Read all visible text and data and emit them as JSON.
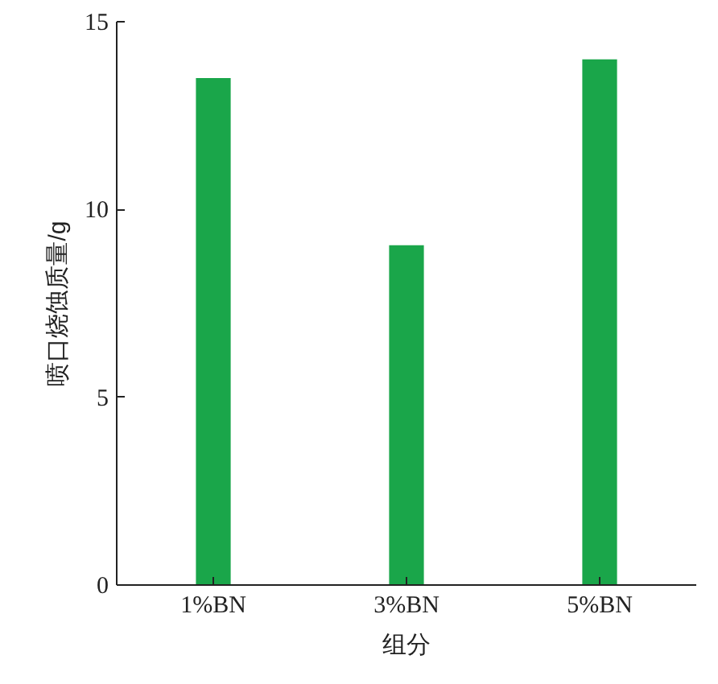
{
  "chart_data": {
    "type": "bar",
    "xlabel": "组分",
    "ylabel": "喷口烧蚀质量/g",
    "categories": [
      "1%BN",
      "3%BN",
      "5%BN"
    ],
    "values": [
      13.5,
      9.05,
      14.0
    ],
    "color": "#1aa64a",
    "ylim": [
      0,
      15
    ],
    "yticks": [
      0,
      5,
      10,
      15
    ],
    "grid": false
  }
}
